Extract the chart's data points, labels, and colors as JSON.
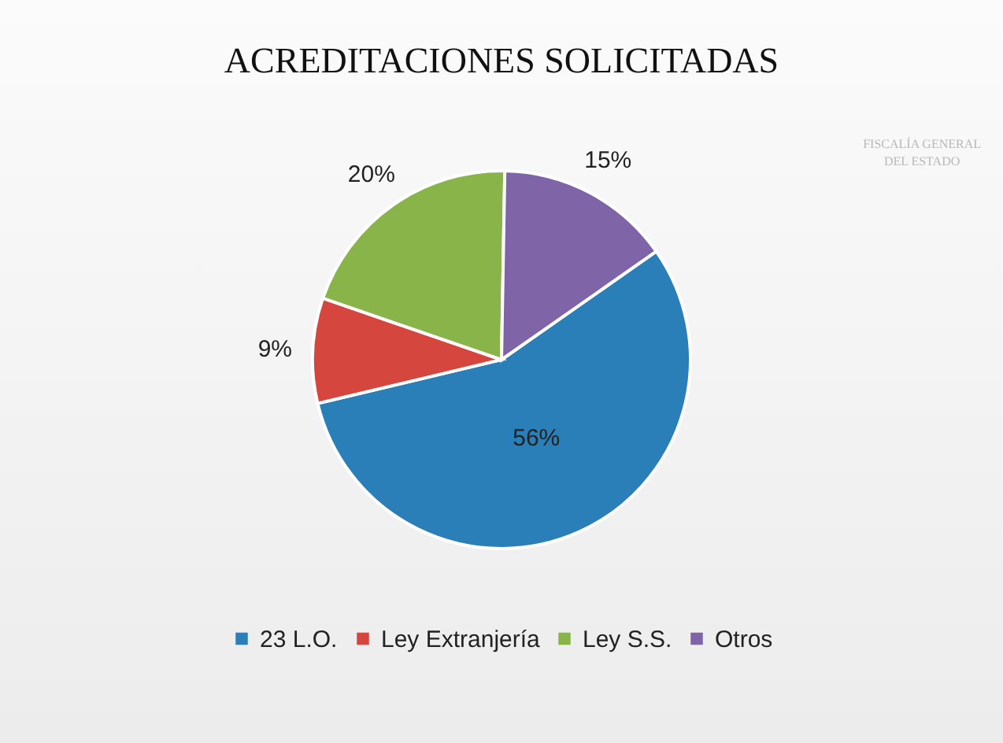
{
  "chart_data": {
    "type": "pie",
    "title": "ACREDITACIONES SOLICITADAS",
    "categories": [
      "23 L.O.",
      "Ley Extranjería",
      "Ley S.S.",
      "Otros"
    ],
    "values": [
      56,
      9,
      20,
      15
    ],
    "colors": [
      "#2a7fb8",
      "#d5463f",
      "#89b44a",
      "#8064a8"
    ],
    "value_labels": [
      "56%",
      "9%",
      "20%",
      "15%"
    ],
    "legend": "bottom",
    "annotations": [
      "FISCALÍA GENERAL",
      "DEL ESTADO"
    ]
  }
}
